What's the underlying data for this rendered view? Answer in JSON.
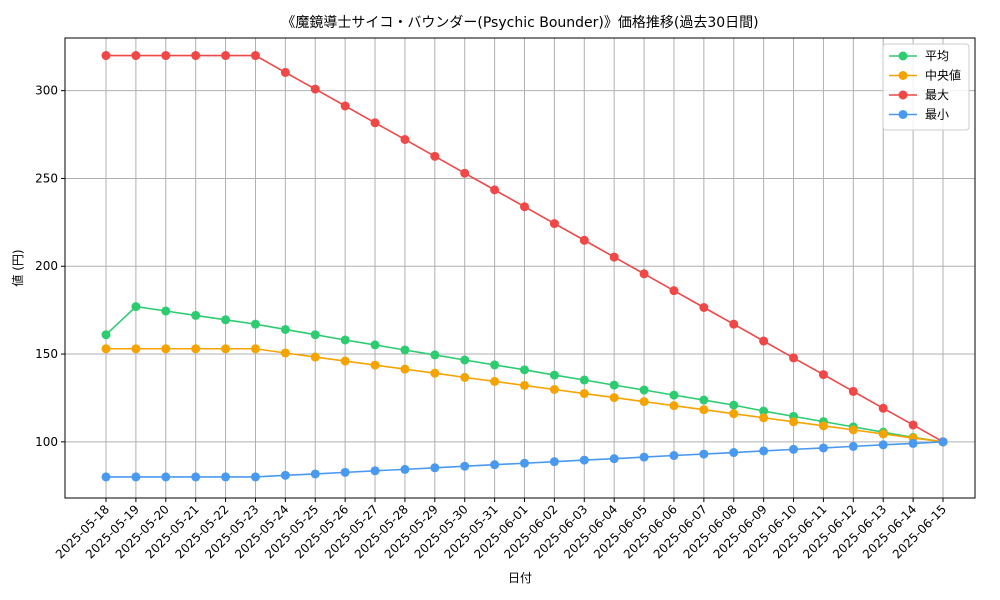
{
  "chart_data": {
    "type": "line",
    "title": "《魔鏡導士サイコ・バウンダー(Psychic Bounder)》価格推移(過去30日間)",
    "xlabel": "日付",
    "ylabel": "値 (円)",
    "ylim": [
      68,
      330
    ],
    "yticks": [
      100,
      150,
      200,
      250,
      300
    ],
    "grid": true,
    "legend_position": "top-right",
    "categories": [
      "2025-05-18",
      "2025-05-19",
      "2025-05-20",
      "2025-05-21",
      "2025-05-22",
      "2025-05-23",
      "2025-05-24",
      "2025-05-25",
      "2025-05-26",
      "2025-05-27",
      "2025-05-28",
      "2025-05-29",
      "2025-05-30",
      "2025-05-31",
      "2025-06-01",
      "2025-06-02",
      "2025-06-03",
      "2025-06-04",
      "2025-06-05",
      "2025-06-06",
      "2025-06-07",
      "2025-06-08",
      "2025-06-09",
      "2025-06-10",
      "2025-06-11",
      "2025-06-12",
      "2025-06-13",
      "2025-06-14",
      "2025-06-15"
    ],
    "series": [
      {
        "name": "平均",
        "color": "#2ecc71",
        "values": [
          161,
          177,
          174.5,
          172,
          169.5,
          167,
          164,
          161,
          158,
          155.2,
          152.3,
          149.5,
          146.6,
          143.8,
          141,
          138,
          135.2,
          132.3,
          129.5,
          126.6,
          123.8,
          120.9,
          117.5,
          114.5,
          111.5,
          108.5,
          105.5,
          102.5,
          100
        ]
      },
      {
        "name": "中央値",
        "color": "#f5a300",
        "values": [
          153,
          153,
          153,
          153,
          153,
          153,
          150.6,
          148.3,
          146,
          143.7,
          141.4,
          139.1,
          136.7,
          134.4,
          132.1,
          129.8,
          127.5,
          125.2,
          122.9,
          120.6,
          118.3,
          116,
          113.7,
          111.4,
          109.1,
          106.8,
          104.5,
          102.2,
          100
        ]
      },
      {
        "name": "最大",
        "color": "#f04747",
        "values": [
          320,
          320,
          320,
          320,
          320,
          320,
          310.4,
          300.9,
          291.3,
          281.7,
          272.2,
          262.6,
          253,
          243.5,
          233.9,
          224.3,
          214.8,
          205.2,
          195.7,
          186.1,
          176.5,
          167,
          157.4,
          147.8,
          138.3,
          128.7,
          119.1,
          109.6,
          100
        ]
      },
      {
        "name": "最小",
        "color": "#4a99f0",
        "values": [
          80,
          80,
          80,
          80,
          80,
          80,
          80.9,
          81.7,
          82.6,
          83.5,
          84.3,
          85.2,
          86.1,
          87,
          87.8,
          88.7,
          89.6,
          90.4,
          91.3,
          92.2,
          93,
          93.9,
          94.8,
          95.7,
          96.5,
          97.4,
          98.3,
          99.1,
          100
        ]
      }
    ]
  }
}
